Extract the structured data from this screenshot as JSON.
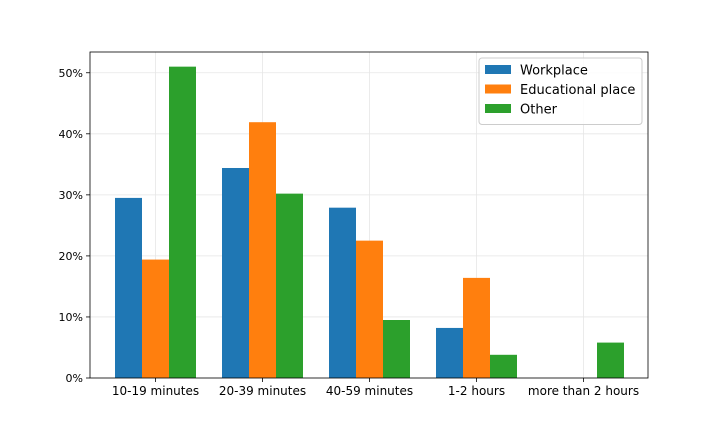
{
  "chart_data": {
    "type": "bar",
    "categories": [
      "10-19 minutes",
      "20-39 minutes",
      "40-59 minutes",
      "1-2 hours",
      "more than 2 hours"
    ],
    "series": [
      {
        "name": "Workplace",
        "color": "#1f77b4",
        "values": [
          29.5,
          34.4,
          27.9,
          8.2,
          0
        ]
      },
      {
        "name": "Educational place",
        "color": "#ff7f0e",
        "values": [
          19.4,
          41.9,
          22.5,
          16.4,
          0
        ]
      },
      {
        "name": "Other",
        "color": "#2ca02c",
        "values": [
          51.0,
          30.2,
          9.5,
          3.8,
          5.8
        ]
      }
    ],
    "ylim": [
      0,
      53.4
    ],
    "yticks": [
      0,
      10,
      20,
      30,
      40,
      50
    ],
    "ytick_labels": [
      "0%",
      "10%",
      "20%",
      "30%",
      "40%",
      "50%"
    ],
    "grid": true,
    "legend_position": "top-right"
  }
}
